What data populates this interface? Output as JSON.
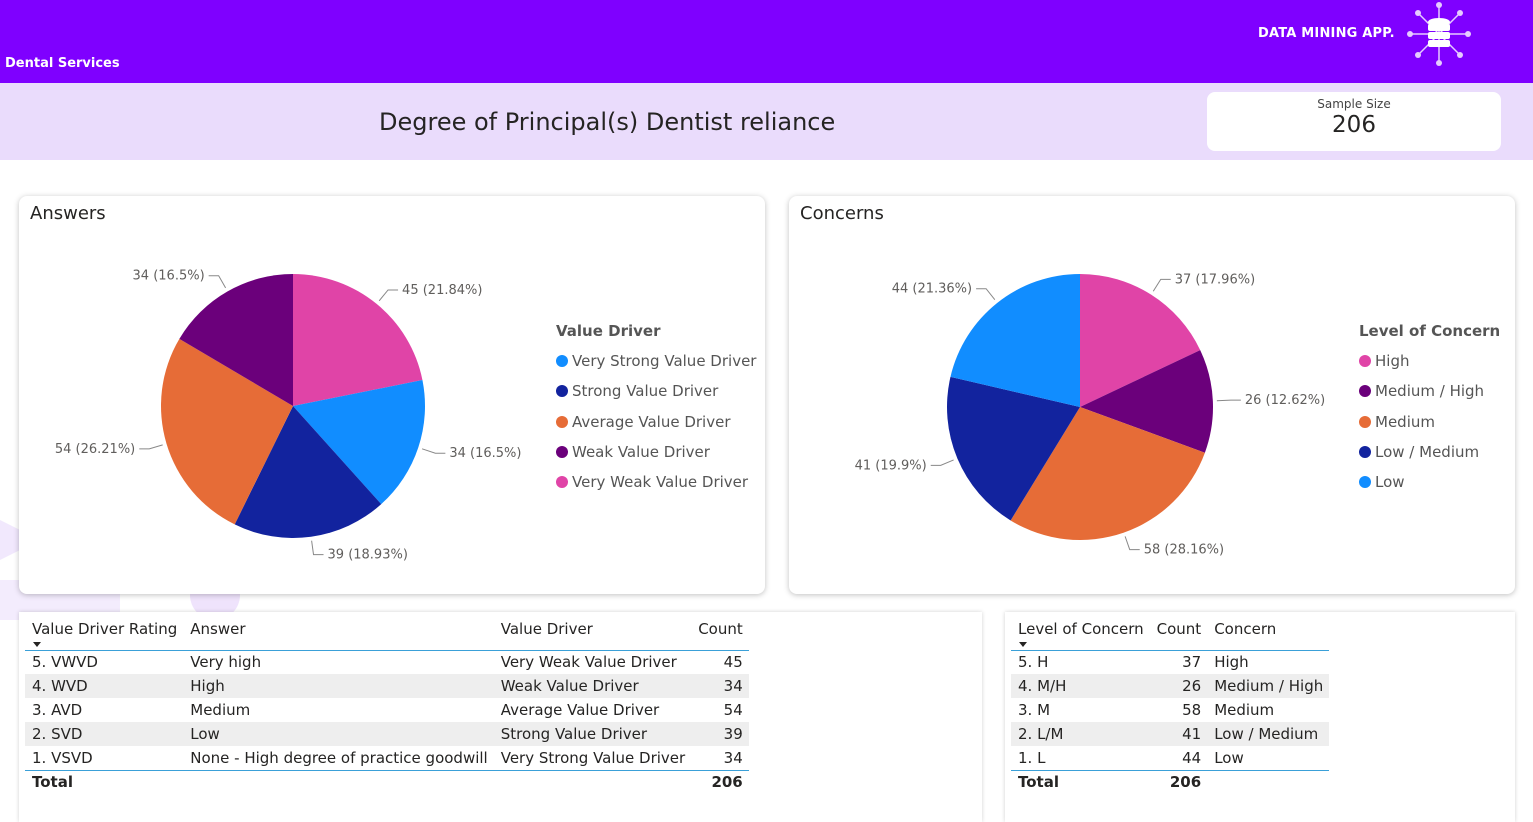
{
  "header": {
    "app_title": "DATA MINING APP.",
    "subtitle": "Dental Services",
    "logo_icon": "database-network-icon"
  },
  "page": {
    "title": "Degree of Principal(s) Dentist reliance"
  },
  "kpi": {
    "label": "Sample Size",
    "value": "206"
  },
  "colors": {
    "header": "#7f00ff",
    "band": "#eadcfc"
  },
  "chart_data": [
    {
      "type": "pie",
      "title": "Answers",
      "legend_title": "Value Driver",
      "legend_order": [
        "Very Strong Value Driver",
        "Strong Value Driver",
        "Average Value Driver",
        "Weak Value Driver",
        "Very Weak Value Driver"
      ],
      "slices": [
        {
          "label": "Very Weak Value Driver",
          "value": 45,
          "text": "45 (21.84%)",
          "color": "#e044a7"
        },
        {
          "label": "Very Strong Value Driver",
          "value": 34,
          "text": "34 (16.5%)",
          "color": "#118dff"
        },
        {
          "label": "Strong Value Driver",
          "value": 39,
          "text": "39 (18.93%)",
          "color": "#12239e"
        },
        {
          "label": "Average Value Driver",
          "value": 54,
          "text": "54 (26.21%)",
          "color": "#e66c37"
        },
        {
          "label": "Weak Value Driver",
          "value": 34,
          "text": "34 (16.5%)",
          "color": "#6b007b"
        }
      ]
    },
    {
      "type": "pie",
      "title": "Concerns",
      "legend_title": "Level of Concern",
      "legend_order": [
        "High",
        "Medium / High",
        "Medium",
        "Low / Medium",
        "Low"
      ],
      "slices": [
        {
          "label": "High",
          "value": 37,
          "text": "37 (17.96%)",
          "color": "#e044a7"
        },
        {
          "label": "Medium / High",
          "value": 26,
          "text": "26 (12.62%)",
          "color": "#6b007b"
        },
        {
          "label": "Medium",
          "value": 58,
          "text": "58 (28.16%)",
          "color": "#e66c37"
        },
        {
          "label": "Low / Medium",
          "value": 41,
          "text": "41 (19.9%)",
          "color": "#12239e"
        },
        {
          "label": "Low",
          "value": 44,
          "text": "44 (21.36%)",
          "color": "#118dff"
        }
      ]
    }
  ],
  "table1": {
    "headers": [
      "Value Driver Rating",
      "Answer",
      "Value Driver",
      "Count"
    ],
    "rows": [
      [
        "5. VWVD",
        "Very high",
        "Very Weak Value Driver",
        "45"
      ],
      [
        "4. WVD",
        "High",
        "Weak Value Driver",
        "34"
      ],
      [
        "3. AVD",
        "Medium",
        "Average Value Driver",
        "54"
      ],
      [
        "2. SVD",
        "Low",
        "Strong Value Driver",
        "39"
      ],
      [
        "1. VSVD",
        "None - High degree of practice goodwill",
        "Very Strong Value Driver",
        "34"
      ]
    ],
    "total_label": "Total",
    "total_value": "206"
  },
  "table2": {
    "headers": [
      "Level of Concern",
      "Count",
      "Concern"
    ],
    "rows": [
      [
        "5. H",
        "37",
        "High"
      ],
      [
        "4. M/H",
        "26",
        "Medium / High"
      ],
      [
        "3. M",
        "58",
        "Medium"
      ],
      [
        "2. L/M",
        "41",
        "Low / Medium"
      ],
      [
        "1. L",
        "44",
        "Low"
      ]
    ],
    "total_label": "Total",
    "total_value": "206"
  }
}
